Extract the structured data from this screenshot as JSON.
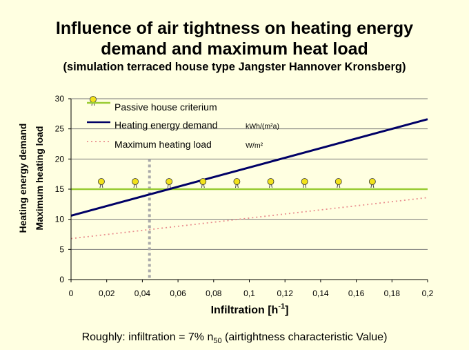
{
  "title_line1": "Influence of air tightness on heating energy",
  "title_line2": "demand and maximum heat load",
  "subtitle": "(simulation terraced house type Jangster Hannover Kronsberg)",
  "footer": {
    "prefix": "Roughly: infiltration = 7% n",
    "sub": "50",
    "suffix": " (airtightness characteristic Value)"
  },
  "colors": {
    "passive": "#99cc33",
    "heating": "#000066",
    "load": "#e98e8e",
    "marker_line": "#aaaaaa",
    "bulb": "#f2e21a"
  },
  "chart_data": {
    "type": "line",
    "xlabel": "Infiltration [h",
    "xlabel_sup": "-1",
    "xlabel_end": "]",
    "ylabel_line1": "Heating energy demand",
    "ylabel_line2": "Maximum heating load",
    "xlim": [
      0,
      0.2
    ],
    "ylim": [
      0,
      30
    ],
    "x_ticks": [
      "0",
      "0,02",
      "0,04",
      "0,06",
      "0,08",
      "0,1",
      "0,12",
      "0,14",
      "0,16",
      "0,18",
      "0,2"
    ],
    "y_ticks": [
      "0",
      "5",
      "10",
      "15",
      "20",
      "25",
      "30"
    ],
    "grid_y": true,
    "legend_position": "top-left",
    "series": [
      {
        "name": "Passive house criterium",
        "unit": "",
        "style": "solid",
        "x": [
          0,
          0.2
        ],
        "y": [
          15,
          15
        ]
      },
      {
        "name": "Heating energy demand",
        "unit": "kWh/(m²a)",
        "style": "solid",
        "x": [
          0,
          0.2
        ],
        "y": [
          10.6,
          26.6
        ]
      },
      {
        "name": "Maximum heating load",
        "unit": "W/m²",
        "style": "dotted",
        "x": [
          0,
          0.2
        ],
        "y": [
          6.8,
          13.6
        ]
      }
    ],
    "reference_x": 0.044,
    "bulb_x": [
      0.017,
      0.036,
      0.055,
      0.074,
      0.093,
      0.112,
      0.131,
      0.15,
      0.169
    ],
    "bulb_y": 15
  }
}
